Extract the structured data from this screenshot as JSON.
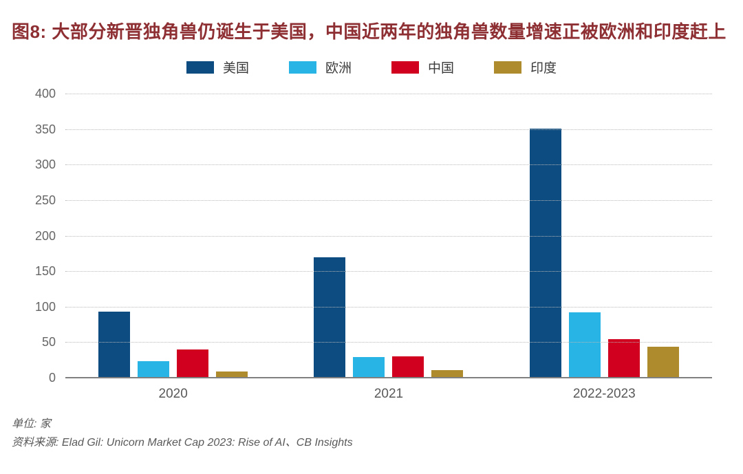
{
  "title": "图8: 大部分新晋独角兽仍诞生于美国，中国近两年的独角兽数量增速正被欧洲和印度赶上",
  "footer": {
    "unit_label": "单位: 家",
    "source_label": "资料来源: Elad Gil: Unicorn Market Cap 2023: Rise of AI、CB Insights"
  },
  "colors": {
    "title": "#8e2f33",
    "axis_text": "#666666",
    "legend_text": "#3a3a3a",
    "gridline": "#b8b8b8",
    "axis_line": "#808080",
    "background": "#ffffff"
  },
  "chart_data": {
    "type": "bar",
    "title": "图8: 大部分新晋独角兽仍诞生于美国，中国近两年的独角兽数量增速正被欧洲和印度赶上",
    "categories": [
      "2020",
      "2021",
      "2022-2023"
    ],
    "series": [
      {
        "name": "美国",
        "color": "#0d4c80",
        "values": [
          94,
          170,
          352
        ]
      },
      {
        "name": "欧洲",
        "color": "#29b4e6",
        "values": [
          24,
          30,
          93
        ]
      },
      {
        "name": "中国",
        "color": "#d1001e",
        "values": [
          41,
          31,
          55
        ]
      },
      {
        "name": "印度",
        "color": "#ae8b2d",
        "values": [
          10,
          12,
          45
        ]
      }
    ],
    "xlabel": "",
    "ylabel": "单位: 家",
    "ylim": [
      0,
      400
    ],
    "yticks": [
      0,
      50,
      100,
      150,
      200,
      250,
      300,
      350,
      400
    ],
    "grid": true,
    "gridline_style": "dotted",
    "legend_position": "top"
  }
}
